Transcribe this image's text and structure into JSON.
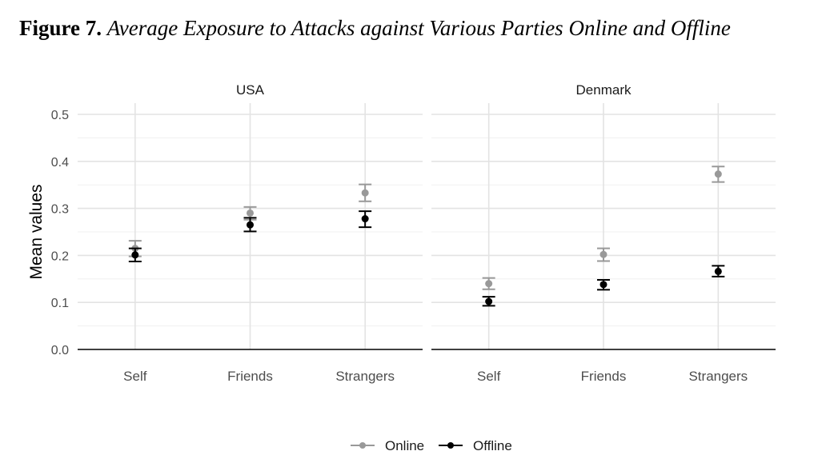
{
  "figure": {
    "label": "Figure 7.",
    "title": "Average Exposure to Attacks against Various Parties Online and Offline"
  },
  "chart_data": {
    "type": "scatter",
    "ylabel": "Mean values",
    "ylim": [
      0,
      0.5
    ],
    "yticks": [
      "0.0",
      "0.1",
      "0.2",
      "0.3",
      "0.4",
      "0.5"
    ],
    "categories": [
      "Self",
      "Friends",
      "Strangers"
    ],
    "grid": true,
    "legend_position": "bottom",
    "error_bars": true,
    "facets": [
      {
        "name": "USA",
        "series": [
          {
            "name": "Online",
            "color": "#999999",
            "values": [
              0.215,
              0.29,
              0.333
            ],
            "lower": [
              0.198,
              0.276,
              0.315
            ],
            "upper": [
              0.231,
              0.303,
              0.351
            ]
          },
          {
            "name": "Offline",
            "color": "#000000",
            "values": [
              0.201,
              0.265,
              0.278
            ],
            "lower": [
              0.187,
              0.251,
              0.26
            ],
            "upper": [
              0.215,
              0.28,
              0.294
            ]
          }
        ]
      },
      {
        "name": "Denmark",
        "series": [
          {
            "name": "Online",
            "color": "#999999",
            "values": [
              0.14,
              0.202,
              0.373
            ],
            "lower": [
              0.128,
              0.188,
              0.356
            ],
            "upper": [
              0.152,
              0.215,
              0.389
            ]
          },
          {
            "name": "Offline",
            "color": "#000000",
            "values": [
              0.102,
              0.138,
              0.166
            ],
            "lower": [
              0.093,
              0.127,
              0.155
            ],
            "upper": [
              0.112,
              0.148,
              0.178
            ]
          }
        ]
      }
    ]
  }
}
